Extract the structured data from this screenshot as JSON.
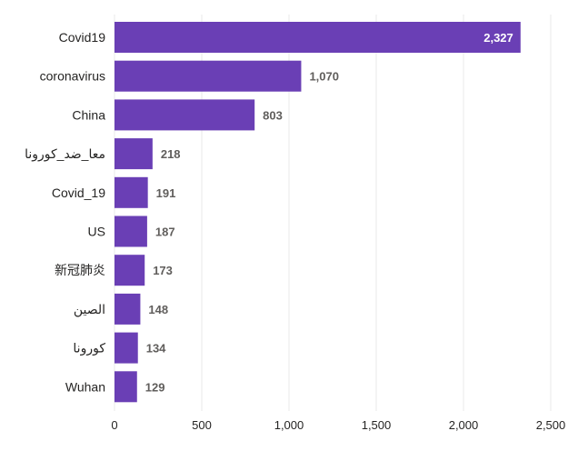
{
  "colors": {
    "bar": "#6a3fb5",
    "gridline": "#e8e8e8",
    "category_text": "#252423",
    "value_text": "#605e5c",
    "value_text_inside": "#ffffff"
  },
  "chart_data": {
    "type": "bar",
    "orientation": "horizontal",
    "title": "",
    "xlabel": "",
    "ylabel": "",
    "categories": [
      "Covid19",
      "coronavirus",
      "China",
      "معا_ضد_كورونا",
      "Covid_19",
      "US",
      "新冠肺炎",
      "الصين",
      "كورونا",
      "Wuhan"
    ],
    "values": [
      2327,
      1070,
      803,
      218,
      191,
      187,
      173,
      148,
      134,
      129
    ],
    "value_labels": [
      "2,327",
      "1,070",
      "803",
      "218",
      "191",
      "187",
      "173",
      "148",
      "134",
      "129"
    ],
    "xlim": [
      0,
      2500
    ],
    "xticks": [
      0,
      500,
      1000,
      1500,
      2000,
      2500
    ],
    "xtick_labels": [
      "0",
      "500",
      "1,000",
      "1,500",
      "2,000",
      "2,500"
    ],
    "grid": true,
    "legend": "none"
  }
}
